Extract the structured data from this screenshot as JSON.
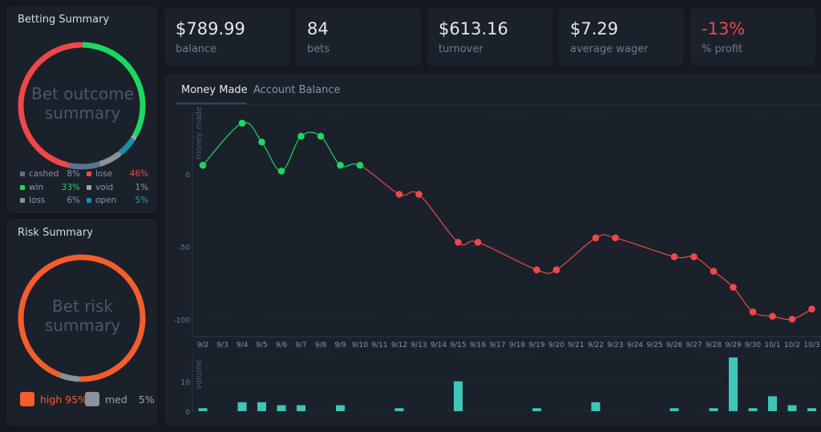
{
  "betting_summary": {
    "title": "Betting Summary",
    "center_text_line1": "Bet outcome",
    "center_text_line2": "summary",
    "legend": [
      {
        "label": "cashed",
        "pct": "8%",
        "color": "#5d7290",
        "pct_color": "#8a94a3"
      },
      {
        "label": "lose",
        "pct": "46%",
        "color": "#f0474a",
        "pct_color": "#f0474a"
      },
      {
        "label": "win",
        "pct": "33%",
        "color": "#1ed760",
        "pct_color": "#1ed760"
      },
      {
        "label": "void",
        "pct": "1%",
        "color": "#9aa3ad",
        "pct_color": "#8a94a3"
      },
      {
        "label": "loss",
        "pct": "6%",
        "color": "#8b919a",
        "pct_color": "#8a94a3"
      },
      {
        "label": "open",
        "pct": "5%",
        "color": "#1492a8",
        "pct_color": "#1aa0b8"
      }
    ]
  },
  "risk_summary": {
    "title": "Risk Summary",
    "center_text_line1": "Bet risk",
    "center_text_line2": "summary",
    "legend": [
      {
        "label": "high",
        "pct": "95%",
        "color": "#f45d2c",
        "pct_color": "#f45d2c"
      },
      {
        "label": "med",
        "pct": "5%",
        "color": "#8b919a",
        "pct_color": "#9aa3ad"
      }
    ]
  },
  "stats": [
    {
      "value": "$789.99",
      "label": "balance",
      "color": "#e3e8ee"
    },
    {
      "value": "84",
      "label": "bets",
      "color": "#e3e8ee"
    },
    {
      "value": "$613.16",
      "label": "turnover",
      "color": "#e3e8ee"
    },
    {
      "value": "$7.29",
      "label": "average wager",
      "color": "#e3e8ee"
    },
    {
      "value": "-13%",
      "label": "% profit",
      "color": "#f0474a"
    }
  ],
  "tabs": [
    {
      "label": "Money Made",
      "active": true
    },
    {
      "label": "Account Balance",
      "active": false
    }
  ],
  "chart_data": [
    {
      "type": "line",
      "ylabel": "money made",
      "x": [
        "9/2",
        "9/3",
        "9/4",
        "9/5",
        "9/6",
        "9/7",
        "9/8",
        "9/9",
        "9/10",
        "9/11",
        "9/12",
        "9/13",
        "9/14",
        "9/15",
        "9/16",
        "9/17",
        "9/18",
        "9/19",
        "9/20",
        "9/21",
        "9/22",
        "9/23",
        "9/24",
        "9/25",
        "9/26",
        "9/27",
        "9/28",
        "9/29",
        "9/30",
        "10/1",
        "10/2",
        "10/3"
      ],
      "points": [
        {
          "x": "9/2",
          "y": 6
        },
        {
          "x": "9/4",
          "y": 35
        },
        {
          "x": "9/5",
          "y": 22
        },
        {
          "x": "9/6",
          "y": 2
        },
        {
          "x": "9/7",
          "y": 26
        },
        {
          "x": "9/8",
          "y": 26
        },
        {
          "x": "9/9",
          "y": 6
        },
        {
          "x": "9/10",
          "y": 6
        },
        {
          "x": "9/12",
          "y": -14
        },
        {
          "x": "9/13",
          "y": -14
        },
        {
          "x": "9/15",
          "y": -47
        },
        {
          "x": "9/16",
          "y": -47
        },
        {
          "x": "9/19",
          "y": -66
        },
        {
          "x": "9/20",
          "y": -66
        },
        {
          "x": "9/22",
          "y": -44
        },
        {
          "x": "9/23",
          "y": -44
        },
        {
          "x": "9/26",
          "y": -57
        },
        {
          "x": "9/27",
          "y": -57
        },
        {
          "x": "9/28",
          "y": -67
        },
        {
          "x": "9/29",
          "y": -78
        },
        {
          "x": "9/30",
          "y": -95
        },
        {
          "x": "10/1",
          "y": -98
        },
        {
          "x": "10/2",
          "y": -100
        },
        {
          "x": "10/3",
          "y": -93
        }
      ],
      "yticks": [
        0,
        -50,
        -100
      ],
      "ylim": [
        -112,
        42
      ],
      "positive_color": "#1ed760",
      "negative_color": "#f0474a",
      "grid": true
    },
    {
      "type": "bar",
      "ylabel": "volume",
      "x": [
        "9/2",
        "9/4",
        "9/5",
        "9/6",
        "9/7",
        "9/9",
        "9/12",
        "9/15",
        "9/19",
        "9/22",
        "9/26",
        "9/28",
        "9/29",
        "9/30",
        "10/1",
        "10/2",
        "10/3"
      ],
      "values": [
        1,
        3,
        3,
        2,
        2,
        2,
        1,
        10,
        1,
        3,
        1,
        1,
        18,
        1,
        5,
        2,
        1
      ],
      "yticks": [
        0,
        10
      ],
      "ylim": [
        0,
        18
      ],
      "color": "#3ec7b8",
      "grid": true
    }
  ]
}
